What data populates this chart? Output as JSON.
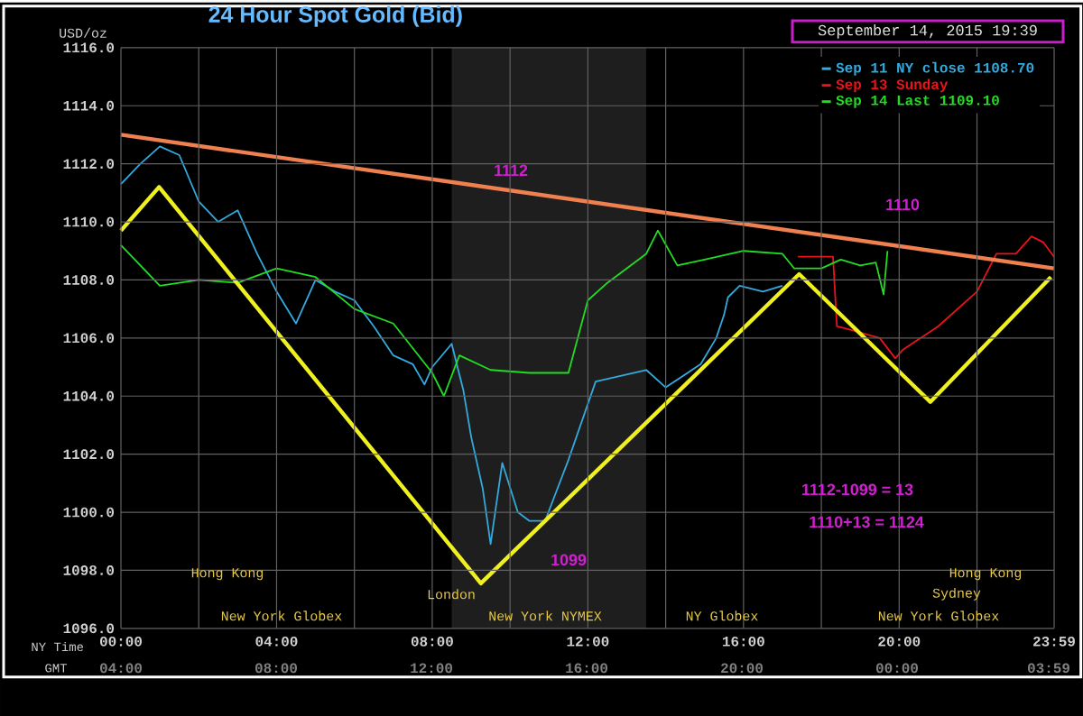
{
  "chart_data": {
    "type": "line",
    "title": "24 Hour Spot Gold (Bid)",
    "subtitle": "September 14, 2015 19:39",
    "ylabel": "USD/oz",
    "xlabel": "NY Time",
    "xlim": [
      0,
      23.983
    ],
    "ylim": [
      1096,
      1116
    ],
    "xticks": [
      {
        "value": 0,
        "label": "00:00"
      },
      {
        "value": 2,
        "label": null
      },
      {
        "value": 4,
        "label": "04:00"
      },
      {
        "value": 6,
        "label": null
      },
      {
        "value": 8,
        "label": "08:00"
      },
      {
        "value": 10,
        "label": null
      },
      {
        "value": 12,
        "label": "12:00"
      },
      {
        "value": 14,
        "label": null
      },
      {
        "value": 16,
        "label": "16:00"
      },
      {
        "value": 18,
        "label": null
      },
      {
        "value": 20,
        "label": "20:00"
      },
      {
        "value": 22,
        "label": null
      },
      {
        "value": 23.983,
        "label": "23:59"
      }
    ],
    "yticks": [
      {
        "value": 1096,
        "label": "1096.0"
      },
      {
        "value": 1098,
        "label": "1098.0"
      },
      {
        "value": 1100,
        "label": "1100.0"
      },
      {
        "value": 1102,
        "label": "1102.0"
      },
      {
        "value": 1104,
        "label": "1104.0"
      },
      {
        "value": 1106,
        "label": "1106.0"
      },
      {
        "value": 1108,
        "label": "1108.0"
      },
      {
        "value": 1110,
        "label": "1110.0"
      },
      {
        "value": 1112,
        "label": "1112.0"
      },
      {
        "value": 1114,
        "label": "1114.0"
      },
      {
        "value": 1116,
        "label": "1116.0"
      }
    ],
    "grid": true,
    "legend": "top right",
    "bands": [
      {
        "axis": "x",
        "from": 8.5,
        "to": 13.5,
        "color": "#1e1e1e"
      }
    ],
    "series": [
      {
        "name": "Sep 11 NY close 1108.70",
        "color": "#33aadd",
        "x": [
          0,
          0.5,
          1.0,
          1.5,
          2.0,
          2.5,
          3.0,
          3.5,
          4.0,
          4.5,
          5.0,
          5.5,
          6.0,
          6.5,
          7.0,
          7.5,
          7.8,
          8.0,
          8.5,
          8.8,
          9.0,
          9.3,
          9.5,
          9.8,
          10.2,
          10.5,
          10.9,
          11.5,
          12.2,
          13.5,
          14.0,
          14.9,
          15.3,
          15.5,
          15.6,
          15.9,
          16.5,
          17.0
        ],
        "values": [
          1111.3,
          1112.0,
          1112.6,
          1112.3,
          1110.7,
          1110.0,
          1110.4,
          1108.9,
          1107.6,
          1106.5,
          1108.0,
          1107.6,
          1107.3,
          1106.4,
          1105.4,
          1105.1,
          1104.4,
          1105.0,
          1105.8,
          1104.2,
          1102.6,
          1100.8,
          1098.9,
          1101.7,
          1100.0,
          1099.7,
          1099.7,
          1101.8,
          1104.5,
          1104.9,
          1104.3,
          1105.1,
          1106.0,
          1106.8,
          1107.4,
          1107.8,
          1107.6,
          1107.8
        ]
      },
      {
        "name": "Sep 13 Sunday",
        "color": "#e8141a",
        "x": [
          17.4,
          18.3,
          18.4,
          18.7,
          19.5,
          19.9,
          20.1,
          21.0,
          22.0,
          22.5,
          23.0,
          23.4,
          23.7,
          23.98
        ],
        "values": [
          1108.8,
          1108.8,
          1106.4,
          1106.3,
          1106.0,
          1105.3,
          1105.6,
          1106.4,
          1107.6,
          1108.9,
          1108.9,
          1109.5,
          1109.3,
          1108.8
        ]
      },
      {
        "name": "Sep 14 Last 1109.10",
        "color": "#22dd22",
        "x": [
          0,
          1,
          2,
          3,
          4,
          5,
          6,
          7,
          8,
          8.3,
          8.7,
          9.5,
          10.5,
          11.5,
          12,
          12.5,
          13.5,
          13.8,
          14.3,
          15,
          16,
          17,
          17.3,
          18,
          18.5,
          19,
          19.4,
          19.6,
          19.7
        ],
        "values": [
          1109.2,
          1107.8,
          1108.0,
          1107.9,
          1108.4,
          1108.1,
          1107.0,
          1106.5,
          1104.8,
          1104.0,
          1105.4,
          1104.9,
          1104.8,
          1104.8,
          1107.3,
          1107.9,
          1108.9,
          1109.7,
          1108.5,
          1108.7,
          1109.0,
          1108.9,
          1108.4,
          1108.4,
          1108.7,
          1108.5,
          1108.6,
          1107.5,
          1109.0
        ]
      },
      {
        "type": "line",
        "color": "#f08050",
        "x": [
          0,
          23.98
        ],
        "values": [
          1113.0,
          1108.4
        ]
      },
      {
        "type": "line",
        "color": "#f0f020",
        "x": [
          0,
          0.98,
          9.25,
          17.43,
          20.8,
          23.9
        ],
        "values": [
          1109.7,
          1111.2,
          1097.55,
          1108.2,
          1103.8,
          1108.1
        ]
      }
    ],
    "annotations": [
      "1112",
      "1110",
      "1099",
      "1112-1099 = 13",
      "1110+13 = 1124",
      "Hong Kong",
      "London",
      "New York Globex",
      "New York NYMEX",
      "NY Globex",
      "New York Globex",
      "Sydney",
      "Hong Kong",
      "GMT",
      "04:00",
      "08:00",
      "12:00",
      "16:00",
      "20:00",
      "00:00",
      "03:59"
    ]
  }
}
